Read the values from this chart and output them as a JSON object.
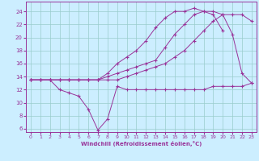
{
  "xlabel": "Windchill (Refroidissement éolien,°C)",
  "bg_color": "#cceeff",
  "line_color": "#993399",
  "grid_color": "#99cccc",
  "xlim": [
    -0.5,
    23.5
  ],
  "ylim": [
    5.5,
    25.5
  ],
  "xticks": [
    0,
    1,
    2,
    3,
    4,
    5,
    6,
    7,
    8,
    9,
    10,
    11,
    12,
    13,
    14,
    15,
    16,
    17,
    18,
    19,
    20,
    21,
    22,
    23
  ],
  "yticks": [
    6,
    8,
    10,
    12,
    14,
    16,
    18,
    20,
    22,
    24
  ],
  "line1_x": [
    0,
    1,
    2,
    3,
    4,
    5,
    6,
    7,
    8,
    9,
    10,
    11,
    12,
    13,
    14,
    15,
    16,
    17,
    18,
    19,
    20,
    21,
    22,
    23
  ],
  "line1_y": [
    13.5,
    13.5,
    13.5,
    12.0,
    11.5,
    11.0,
    9.0,
    5.8,
    7.5,
    12.5,
    12.0,
    12.0,
    12.0,
    12.0,
    12.0,
    12.0,
    12.0,
    12.0,
    12.0,
    12.5,
    12.5,
    12.5,
    12.5,
    13.0
  ],
  "line2_x": [
    0,
    1,
    2,
    3,
    4,
    5,
    6,
    7,
    8,
    9,
    10,
    11,
    12,
    13,
    14,
    15,
    16,
    17,
    18,
    19,
    20,
    21,
    22,
    23
  ],
  "line2_y": [
    13.5,
    13.5,
    13.5,
    13.5,
    13.5,
    13.5,
    13.5,
    13.5,
    13.5,
    13.5,
    14.0,
    14.5,
    15.0,
    15.5,
    16.0,
    17.0,
    18.0,
    19.5,
    21.0,
    22.5,
    23.5,
    23.5,
    23.5,
    22.5
  ],
  "line3_x": [
    0,
    1,
    2,
    3,
    4,
    5,
    6,
    7,
    8,
    9,
    10,
    11,
    12,
    13,
    14,
    15,
    16,
    17,
    18,
    19,
    20,
    21,
    22,
    23
  ],
  "line3_y": [
    13.5,
    13.5,
    13.5,
    13.5,
    13.5,
    13.5,
    13.5,
    13.5,
    14.0,
    14.5,
    15.0,
    15.5,
    16.0,
    16.5,
    18.5,
    20.5,
    22.0,
    23.5,
    24.0,
    24.0,
    23.5,
    20.5,
    14.5,
    13.0
  ],
  "line4_x": [
    0,
    1,
    2,
    3,
    4,
    5,
    6,
    7,
    8,
    9,
    10,
    11,
    12,
    13,
    14,
    15,
    16,
    17,
    18,
    19,
    20
  ],
  "line4_y": [
    13.5,
    13.5,
    13.5,
    13.5,
    13.5,
    13.5,
    13.5,
    13.5,
    14.5,
    16.0,
    17.0,
    18.0,
    19.5,
    21.5,
    23.0,
    24.0,
    24.0,
    24.5,
    24.0,
    23.5,
    21.0
  ]
}
